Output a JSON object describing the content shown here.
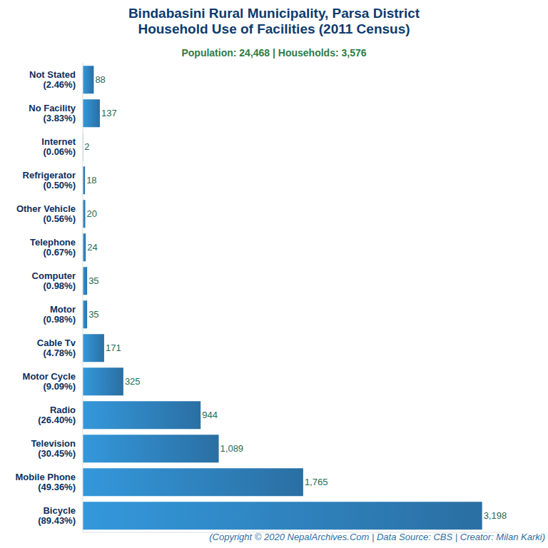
{
  "chart_data": {
    "type": "bar",
    "orientation": "horizontal",
    "title": "Bindabasini Rural Municipality, Parsa District\nHousehold Use of Facilities (2011 Census)",
    "subtitle": "Population: 24,468 | Households: 3,576",
    "annotation": "(Copyright © 2020 NepalArchives.Com | Data Source: CBS | Creator: Milan Karki)",
    "categories": [
      "Not Stated\n(2.46%)",
      "No Facility\n(3.83%)",
      "Internet\n(0.06%)",
      "Refrigerator\n(0.50%)",
      "Other Vehicle\n(0.56%)",
      "Telephone\n(0.67%)",
      "Computer\n(0.98%)",
      "Motor\n(0.98%)",
      "Cable Tv\n(4.78%)",
      "Motor Cycle\n(9.09%)",
      "Radio\n(26.40%)",
      "Television\n(30.45%)",
      "Mobile Phone\n(49.36%)",
      "Bicycle\n(89.43%)"
    ],
    "values": [
      88,
      137,
      2,
      18,
      20,
      24,
      35,
      35,
      171,
      325,
      944,
      1089,
      1765,
      3198
    ],
    "value_labels": [
      "88",
      "137",
      "2",
      "18",
      "20",
      "24",
      "35",
      "35",
      "171",
      "325",
      "944",
      "1,089",
      "1,765",
      "3,198"
    ],
    "color": "#3498db",
    "xlim": [
      0,
      3400
    ],
    "xticks": [],
    "data_labels": true,
    "tick_labels": "y",
    "grid": false
  }
}
